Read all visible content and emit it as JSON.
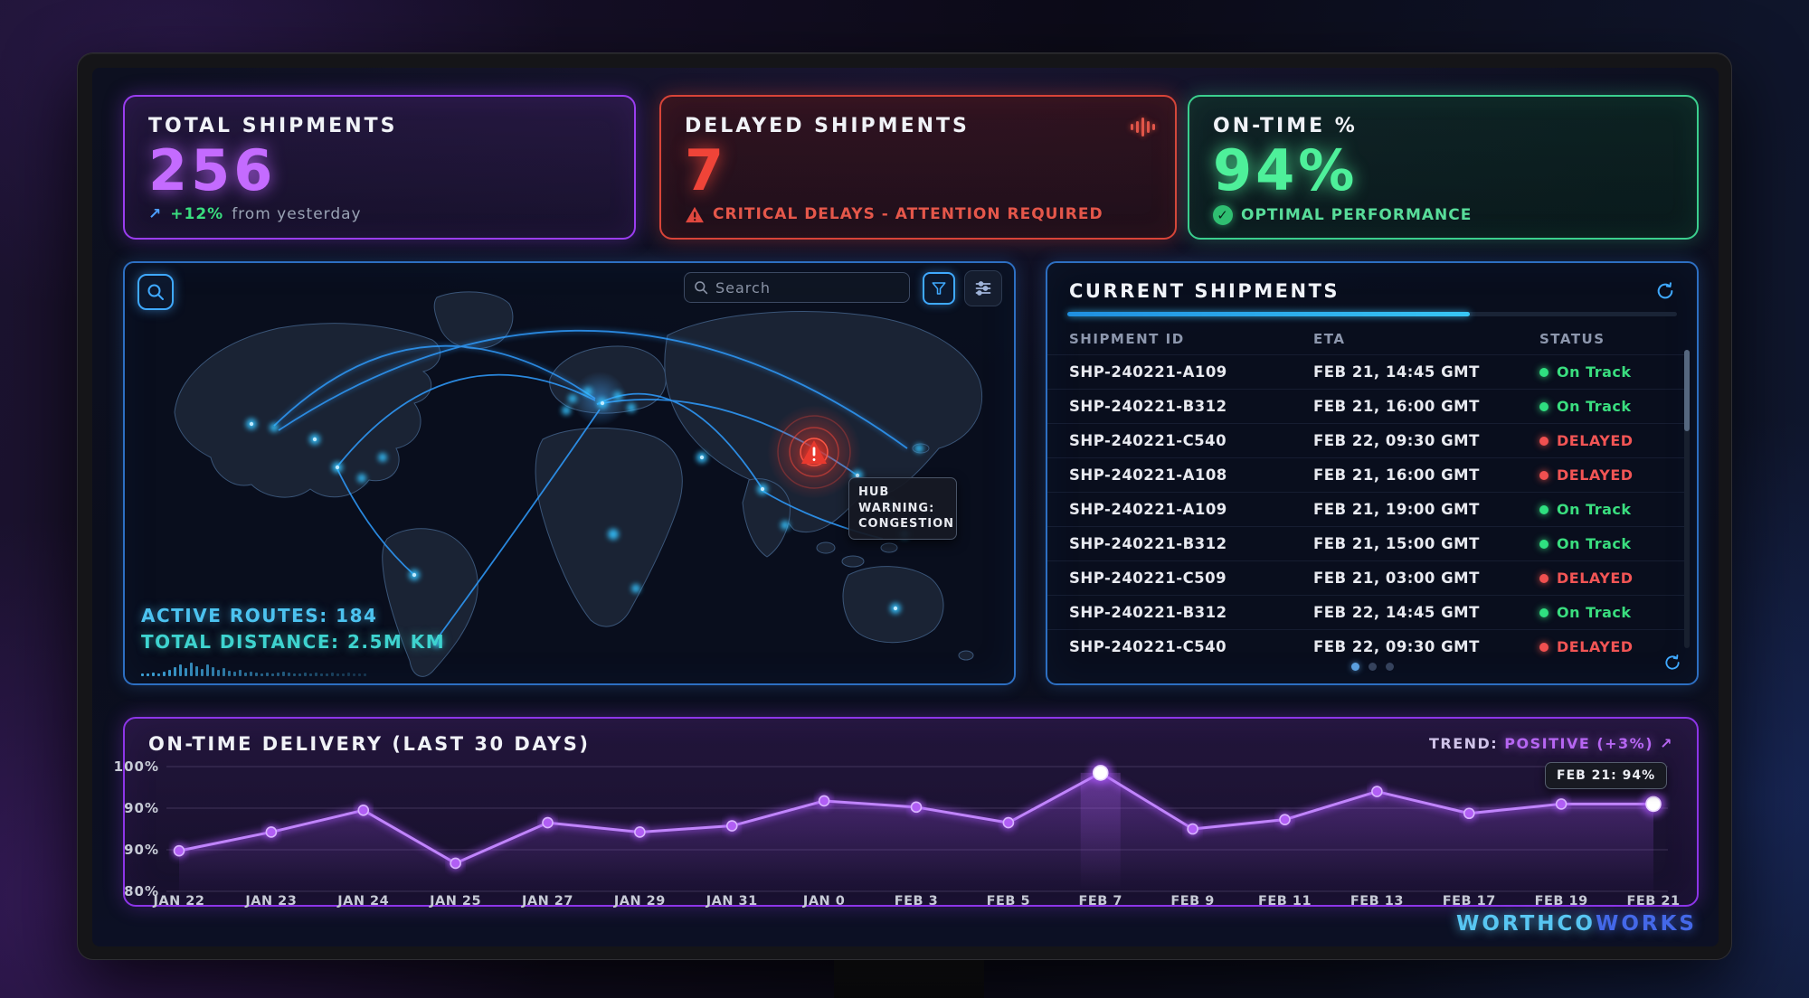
{
  "kpis": {
    "total": {
      "title": "TOTAL SHIPMENTS",
      "value": "256",
      "trend_arrow": "↗",
      "trend_pct": "+12%",
      "trend_rest": "from yesterday"
    },
    "delayed": {
      "title": "DELAYED SHIPMENTS",
      "value": "7",
      "alert": "CRITICAL DELAYS - ATTENTION REQUIRED"
    },
    "ontime": {
      "title": "ON-TIME %",
      "value": "94%",
      "status": "OPTIMAL PERFORMANCE"
    }
  },
  "map": {
    "search_placeholder": "Search",
    "active_routes": "ACTIVE ROUTES: 184",
    "total_distance": "TOTAL DISTANCE: 2.5M KM",
    "warning_line1": "HUB WARNING:",
    "warning_line2": "CONGESTION"
  },
  "shipments": {
    "title": "CURRENT SHIPMENTS",
    "columns": [
      "SHIPMENT ID",
      "ETA",
      "STATUS"
    ],
    "rows": [
      {
        "id": "SHP-240221-A109",
        "eta": "FEB 21, 14:45 GMT",
        "status": "On Track",
        "state": "ontrack"
      },
      {
        "id": "SHP-240221-B312",
        "eta": "FEB 21, 16:00 GMT",
        "status": "On Track",
        "state": "ontrack"
      },
      {
        "id": "SHP-240221-C540",
        "eta": "FEB 22, 09:30 GMT",
        "status": "DELAYED",
        "state": "delayed"
      },
      {
        "id": "SHP-240221-A108",
        "eta": "FEB 21, 16:00 GMT",
        "status": "DELAYED",
        "state": "delayed"
      },
      {
        "id": "SHP-240221-A109",
        "eta": "FEB 21, 19:00 GMT",
        "status": "On Track",
        "state": "ontrack"
      },
      {
        "id": "SHP-240221-B312",
        "eta": "FEB 21, 15:00 GMT",
        "status": "On Track",
        "state": "ontrack"
      },
      {
        "id": "SHP-240221-C509",
        "eta": "FEB 21, 03:00 GMT",
        "status": "DELAYED",
        "state": "delayed"
      },
      {
        "id": "SHP-240221-B312",
        "eta": "FEB 22, 14:45 GMT",
        "status": "On Track",
        "state": "ontrack"
      },
      {
        "id": "SHP-240221-C540",
        "eta": "FEB 22, 09:30 GMT",
        "status": "DELAYED",
        "state": "delayed"
      }
    ]
  },
  "chart": {
    "trend_label": "TREND:",
    "trend_value": "POSITIVE (+3%)",
    "trend_arrow": "↗",
    "tooltip": "FEB 21: 94%"
  },
  "chart_data": {
    "type": "line",
    "title": "ON-TIME DELIVERY (LAST 30 DAYS)",
    "x": [
      "JAN 22",
      "JAN 23",
      "JAN 24",
      "JAN 25",
      "JAN 27",
      "JAN 29",
      "JAN 31",
      "JAN 0",
      "FEB 3",
      "FEB 5",
      "FEB 7",
      "FEB 9",
      "FEB 11",
      "FEB 13",
      "FEB 17",
      "FEB 19",
      "FEB 21"
    ],
    "values": [
      86.5,
      89.5,
      93,
      84.5,
      91,
      89.5,
      90.5,
      94.5,
      93.5,
      91,
      99,
      90,
      91.5,
      96,
      92.5,
      94,
      94
    ],
    "ylim": [
      80,
      100
    ],
    "ytick_labels": [
      "100%",
      "90%",
      "90%",
      "80%"
    ],
    "highlight_indexes": [
      10,
      16
    ],
    "grid": true,
    "line_color": "#a855f7",
    "legend": null
  },
  "brand": {
    "part1": "WORTHCO",
    "part2": "WORKS"
  }
}
